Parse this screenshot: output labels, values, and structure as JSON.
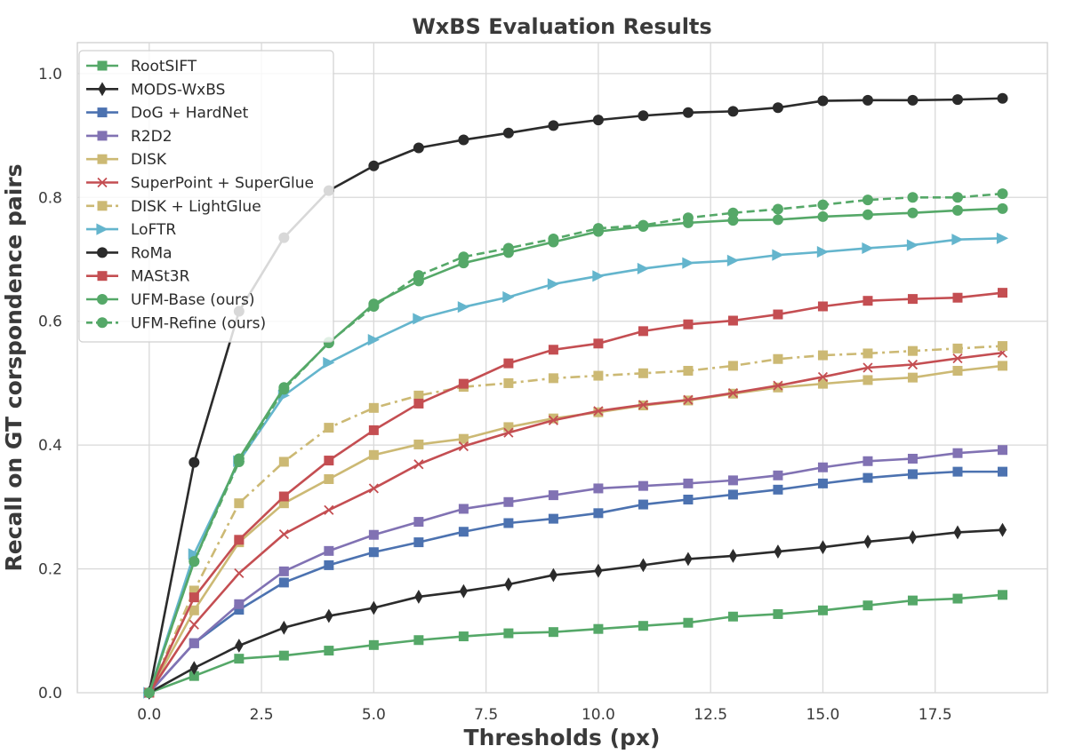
{
  "chart_data": {
    "type": "line",
    "title": "WxBS Evaluation Results",
    "xlabel": "Thresholds (px)",
    "ylabel": "Recall on GT corspondence pairs",
    "xlim": [
      -1.6,
      20.0
    ],
    "ylim": [
      0.0,
      1.05
    ],
    "xticks": [
      0.0,
      2.5,
      5.0,
      7.5,
      10.0,
      12.5,
      15.0,
      17.5
    ],
    "xtick_labels": [
      "0.0",
      "2.5",
      "5.0",
      "7.5",
      "10.0",
      "12.5",
      "15.0",
      "17.5"
    ],
    "yticks": [
      0.0,
      0.2,
      0.4,
      0.6,
      0.8,
      1.0
    ],
    "ytick_labels": [
      "0.0",
      "0.2",
      "0.4",
      "0.6",
      "0.8",
      "1.0"
    ],
    "grid": true,
    "legend_position": "top-left",
    "x": [
      0,
      1,
      2,
      3,
      4,
      5,
      6,
      7,
      8,
      9,
      10,
      11,
      12,
      13,
      14,
      15,
      16,
      17,
      18,
      19
    ],
    "series": [
      {
        "name": "RootSIFT",
        "color": "#55a868",
        "marker": "square",
        "dash": "solid",
        "values": [
          0.0,
          0.027,
          0.055,
          0.06,
          0.068,
          0.077,
          0.085,
          0.091,
          0.096,
          0.098,
          0.103,
          0.108,
          0.113,
          0.123,
          0.127,
          0.133,
          0.141,
          0.149,
          0.152,
          0.158
        ]
      },
      {
        "name": "MODS-WxBS",
        "color": "#2b2b2b",
        "marker": "diamond",
        "dash": "solid",
        "values": [
          0.0,
          0.04,
          0.076,
          0.105,
          0.124,
          0.137,
          0.155,
          0.164,
          0.175,
          0.19,
          0.197,
          0.206,
          0.216,
          0.221,
          0.228,
          0.235,
          0.244,
          0.251,
          0.259,
          0.263
        ]
      },
      {
        "name": "DoG + HardNet",
        "color": "#4c72b0",
        "marker": "square",
        "dash": "solid",
        "values": [
          0.0,
          0.08,
          0.134,
          0.178,
          0.206,
          0.227,
          0.243,
          0.26,
          0.274,
          0.281,
          0.29,
          0.304,
          0.312,
          0.32,
          0.328,
          0.338,
          0.347,
          0.353,
          0.357,
          0.357
        ]
      },
      {
        "name": "R2D2",
        "color": "#8172b3",
        "marker": "square",
        "dash": "solid",
        "values": [
          0.0,
          0.08,
          0.143,
          0.196,
          0.229,
          0.255,
          0.276,
          0.297,
          0.308,
          0.319,
          0.33,
          0.334,
          0.338,
          0.343,
          0.351,
          0.364,
          0.374,
          0.378,
          0.387,
          0.392
        ]
      },
      {
        "name": "DISK",
        "color": "#ccb974",
        "marker": "square",
        "dash": "solid",
        "values": [
          0.0,
          0.133,
          0.243,
          0.306,
          0.345,
          0.384,
          0.401,
          0.41,
          0.429,
          0.443,
          0.453,
          0.464,
          0.472,
          0.483,
          0.493,
          0.499,
          0.505,
          0.509,
          0.52,
          0.528
        ]
      },
      {
        "name": "SuperPoint + SuperGlue",
        "color": "#c44e52",
        "marker": "x",
        "dash": "solid",
        "values": [
          0.0,
          0.11,
          0.193,
          0.256,
          0.295,
          0.33,
          0.369,
          0.398,
          0.42,
          0.44,
          0.455,
          0.465,
          0.473,
          0.484,
          0.496,
          0.51,
          0.525,
          0.53,
          0.54,
          0.549
        ]
      },
      {
        "name": "DISK + LightGlue",
        "color": "#ccb974",
        "marker": "square",
        "dash": "dashdot",
        "values": [
          0.0,
          0.165,
          0.306,
          0.373,
          0.428,
          0.46,
          0.48,
          0.494,
          0.5,
          0.508,
          0.512,
          0.516,
          0.52,
          0.528,
          0.539,
          0.545,
          0.548,
          0.552,
          0.556,
          0.56
        ]
      },
      {
        "name": "LoFTR",
        "color": "#64b5cd",
        "marker": "triangle-right",
        "dash": "solid",
        "values": [
          0.0,
          0.224,
          0.374,
          0.48,
          0.533,
          0.57,
          0.604,
          0.623,
          0.639,
          0.66,
          0.673,
          0.685,
          0.694,
          0.698,
          0.707,
          0.712,
          0.718,
          0.723,
          0.732,
          0.734
        ]
      },
      {
        "name": "RoMa",
        "color": "#2b2b2b",
        "marker": "circle",
        "dash": "solid",
        "values": [
          0.0,
          0.372,
          0.616,
          0.735,
          0.811,
          0.851,
          0.88,
          0.893,
          0.904,
          0.916,
          0.925,
          0.932,
          0.937,
          0.939,
          0.945,
          0.956,
          0.957,
          0.957,
          0.958,
          0.96
        ]
      },
      {
        "name": "MASt3R",
        "color": "#c44e52",
        "marker": "square",
        "dash": "solid",
        "values": [
          0.0,
          0.154,
          0.247,
          0.317,
          0.375,
          0.424,
          0.467,
          0.499,
          0.532,
          0.554,
          0.564,
          0.584,
          0.595,
          0.601,
          0.611,
          0.624,
          0.633,
          0.636,
          0.638,
          0.646
        ]
      },
      {
        "name": "UFM-Base (ours)",
        "color": "#55a868",
        "marker": "circle",
        "dash": "solid",
        "values": [
          0.0,
          0.212,
          0.378,
          0.493,
          0.565,
          0.628,
          0.665,
          0.694,
          0.711,
          0.728,
          0.745,
          0.753,
          0.759,
          0.763,
          0.764,
          0.769,
          0.772,
          0.775,
          0.779,
          0.782
        ]
      },
      {
        "name": "UFM-Refine (ours)",
        "color": "#55a868",
        "marker": "circle",
        "dash": "dashed",
        "values": [
          0.0,
          0.212,
          0.373,
          0.49,
          0.566,
          0.624,
          0.674,
          0.704,
          0.718,
          0.733,
          0.75,
          0.755,
          0.767,
          0.775,
          0.781,
          0.788,
          0.796,
          0.8,
          0.8,
          0.806
        ]
      }
    ]
  }
}
